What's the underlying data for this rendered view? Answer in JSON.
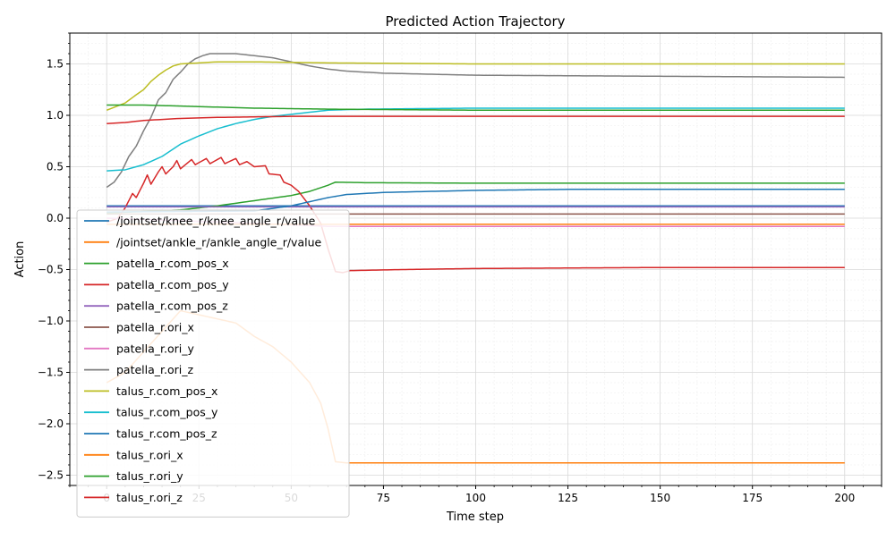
{
  "chart_data": {
    "type": "line",
    "title": "Predicted Action Trajectory",
    "xlabel": "Time step",
    "ylabel": "Action",
    "xlim": [
      -10,
      210
    ],
    "ylim": [
      -2.6,
      1.8
    ],
    "xticks": [
      0,
      25,
      50,
      75,
      100,
      125,
      150,
      175,
      200
    ],
    "yticks": [
      -2.5,
      -2.0,
      -1.5,
      -1.0,
      -0.5,
      0.0,
      0.5,
      1.0,
      1.5
    ],
    "ytick_labels": [
      "−2.5",
      "−2.0",
      "−1.5",
      "−1.0",
      "−0.5",
      "0.0",
      "0.5",
      "1.0",
      "1.5"
    ],
    "grid": true,
    "minor_grid": true,
    "legend_position": "lower-left",
    "series": [
      {
        "name": "/jointset/knee_r/knee_angle_r/value",
        "color": "#1f77b4",
        "points": [
          [
            0,
            0.12
          ],
          [
            60,
            0.12
          ],
          [
            200,
            0.12
          ]
        ]
      },
      {
        "name": "/jointset/ankle_r/ankle_angle_r/value",
        "color": "#ff7f0e",
        "points": [
          [
            0,
            -1.6
          ],
          [
            5,
            -1.5
          ],
          [
            10,
            -1.3
          ],
          [
            20,
            -0.9
          ],
          [
            30,
            -0.98
          ],
          [
            35,
            -1.02
          ],
          [
            40,
            -1.15
          ],
          [
            45,
            -1.25
          ],
          [
            50,
            -1.4
          ],
          [
            55,
            -1.6
          ],
          [
            58,
            -1.8
          ],
          [
            60,
            -2.05
          ],
          [
            62,
            -2.37
          ],
          [
            65,
            -2.38
          ],
          [
            100,
            -2.38
          ],
          [
            150,
            -2.38
          ],
          [
            200,
            -2.38
          ]
        ]
      },
      {
        "name": "patella_r.com_pos_x",
        "color": "#2ca02c",
        "points": [
          [
            0,
            0.05
          ],
          [
            20,
            0.08
          ],
          [
            30,
            0.12
          ],
          [
            40,
            0.17
          ],
          [
            50,
            0.22
          ],
          [
            55,
            0.26
          ],
          [
            60,
            0.32
          ],
          [
            62,
            0.35
          ],
          [
            70,
            0.345
          ],
          [
            100,
            0.34
          ],
          [
            200,
            0.34
          ]
        ]
      },
      {
        "name": "patella_r.com_pos_y",
        "color": "#d62728",
        "points": [
          [
            0,
            -0.04
          ],
          [
            3,
            0.0
          ],
          [
            5,
            0.1
          ],
          [
            7,
            0.24
          ],
          [
            8,
            0.2
          ],
          [
            10,
            0.34
          ],
          [
            11,
            0.42
          ],
          [
            12,
            0.33
          ],
          [
            14,
            0.45
          ],
          [
            15,
            0.5
          ],
          [
            16,
            0.43
          ],
          [
            18,
            0.5
          ],
          [
            19,
            0.56
          ],
          [
            20,
            0.48
          ],
          [
            23,
            0.57
          ],
          [
            24,
            0.52
          ],
          [
            27,
            0.58
          ],
          [
            28,
            0.53
          ],
          [
            31,
            0.59
          ],
          [
            32,
            0.53
          ],
          [
            35,
            0.58
          ],
          [
            36,
            0.52
          ],
          [
            38,
            0.55
          ],
          [
            40,
            0.5
          ],
          [
            43,
            0.51
          ],
          [
            44,
            0.43
          ],
          [
            47,
            0.42
          ],
          [
            48,
            0.35
          ],
          [
            50,
            0.32
          ],
          [
            52,
            0.26
          ],
          [
            55,
            0.12
          ],
          [
            58,
            -0.05
          ],
          [
            60,
            -0.3
          ],
          [
            62,
            -0.52
          ],
          [
            64,
            -0.53
          ],
          [
            66,
            -0.51
          ],
          [
            80,
            -0.5
          ],
          [
            100,
            -0.49
          ],
          [
            150,
            -0.48
          ],
          [
            200,
            -0.48
          ]
        ]
      },
      {
        "name": "patella_r.com_pos_z",
        "color": "#9467bd",
        "points": [
          [
            0,
            0.11
          ],
          [
            100,
            0.11
          ],
          [
            200,
            0.11
          ]
        ]
      },
      {
        "name": "patella_r.ori_x",
        "color": "#8c564b",
        "points": [
          [
            0,
            0.04
          ],
          [
            100,
            0.04
          ],
          [
            200,
            0.04
          ]
        ]
      },
      {
        "name": "patella_r.ori_y",
        "color": "#e377c2",
        "points": [
          [
            0,
            0.0
          ],
          [
            40,
            -0.05
          ],
          [
            60,
            -0.08
          ],
          [
            100,
            -0.08
          ],
          [
            200,
            -0.08
          ]
        ]
      },
      {
        "name": "patella_r.ori_z",
        "color": "#7f7f7f",
        "points": [
          [
            0,
            0.3
          ],
          [
            2,
            0.35
          ],
          [
            4,
            0.45
          ],
          [
            6,
            0.6
          ],
          [
            8,
            0.7
          ],
          [
            10,
            0.85
          ],
          [
            12,
            0.98
          ],
          [
            14,
            1.15
          ],
          [
            16,
            1.22
          ],
          [
            18,
            1.35
          ],
          [
            20,
            1.42
          ],
          [
            22,
            1.5
          ],
          [
            24,
            1.55
          ],
          [
            26,
            1.58
          ],
          [
            28,
            1.6
          ],
          [
            35,
            1.6
          ],
          [
            40,
            1.58
          ],
          [
            45,
            1.56
          ],
          [
            50,
            1.52
          ],
          [
            55,
            1.48
          ],
          [
            60,
            1.45
          ],
          [
            65,
            1.43
          ],
          [
            75,
            1.41
          ],
          [
            100,
            1.39
          ],
          [
            150,
            1.38
          ],
          [
            200,
            1.37
          ]
        ]
      },
      {
        "name": "talus_r.com_pos_x",
        "color": "#bcbd22",
        "points": [
          [
            0,
            1.05
          ],
          [
            5,
            1.12
          ],
          [
            8,
            1.2
          ],
          [
            10,
            1.25
          ],
          [
            12,
            1.33
          ],
          [
            14,
            1.39
          ],
          [
            16,
            1.44
          ],
          [
            18,
            1.48
          ],
          [
            20,
            1.5
          ],
          [
            25,
            1.51
          ],
          [
            30,
            1.52
          ],
          [
            40,
            1.52
          ],
          [
            60,
            1.51
          ],
          [
            100,
            1.5
          ],
          [
            200,
            1.5
          ]
        ]
      },
      {
        "name": "talus_r.com_pos_y",
        "color": "#17becf",
        "points": [
          [
            0,
            0.46
          ],
          [
            5,
            0.47
          ],
          [
            10,
            0.52
          ],
          [
            15,
            0.6
          ],
          [
            20,
            0.72
          ],
          [
            25,
            0.8
          ],
          [
            30,
            0.87
          ],
          [
            35,
            0.92
          ],
          [
            40,
            0.96
          ],
          [
            45,
            0.99
          ],
          [
            50,
            1.01
          ],
          [
            55,
            1.03
          ],
          [
            60,
            1.05
          ],
          [
            70,
            1.06
          ],
          [
            100,
            1.07
          ],
          [
            200,
            1.07
          ]
        ]
      },
      {
        "name": "talus_r.com_pos_z",
        "color": "#1f77b4",
        "points": [
          [
            0,
            0.06
          ],
          [
            40,
            0.07
          ],
          [
            50,
            0.12
          ],
          [
            55,
            0.16
          ],
          [
            60,
            0.2
          ],
          [
            65,
            0.23
          ],
          [
            75,
            0.25
          ],
          [
            100,
            0.27
          ],
          [
            125,
            0.28
          ],
          [
            150,
            0.28
          ],
          [
            200,
            0.28
          ]
        ]
      },
      {
        "name": "talus_r.ori_x",
        "color": "#ff7f0e",
        "points": [
          [
            0,
            -0.06
          ],
          [
            100,
            -0.06
          ],
          [
            200,
            -0.06
          ]
        ]
      },
      {
        "name": "talus_r.ori_y",
        "color": "#2ca02c",
        "points": [
          [
            0,
            1.1
          ],
          [
            10,
            1.1
          ],
          [
            20,
            1.09
          ],
          [
            30,
            1.08
          ],
          [
            40,
            1.07
          ],
          [
            60,
            1.06
          ],
          [
            100,
            1.05
          ],
          [
            200,
            1.05
          ]
        ]
      },
      {
        "name": "talus_r.ori_z",
        "color": "#d62728",
        "points": [
          [
            0,
            0.92
          ],
          [
            5,
            0.93
          ],
          [
            10,
            0.95
          ],
          [
            15,
            0.96
          ],
          [
            20,
            0.97
          ],
          [
            30,
            0.98
          ],
          [
            50,
            0.99
          ],
          [
            100,
            0.99
          ],
          [
            200,
            0.99
          ]
        ]
      }
    ]
  }
}
